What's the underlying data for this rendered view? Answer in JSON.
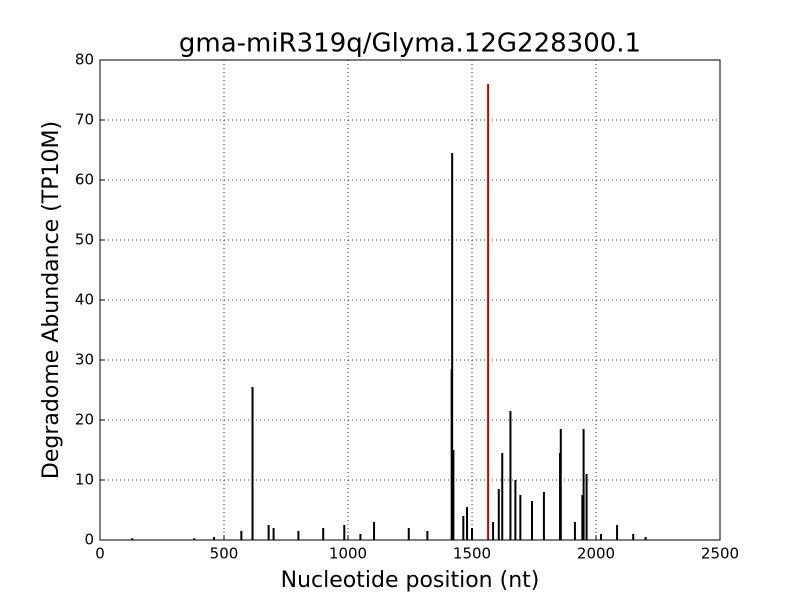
{
  "chart_data": {
    "type": "stem",
    "title": "gma-miR319q/Glyma.12G228300.1",
    "x_label": "Nucleotide position (nt)",
    "y_label": "Degradome Abundance (TP10M)",
    "xlim": [
      0,
      2500
    ],
    "ylim": [
      0,
      80
    ],
    "xticks": [
      0,
      500,
      1000,
      1500,
      2000,
      2500
    ],
    "yticks": [
      0,
      10,
      20,
      30,
      40,
      50,
      60,
      70,
      80
    ],
    "grid": true,
    "series": [
      {
        "color": "#000000",
        "x": [
          130,
          380,
          460,
          570,
          615,
          680,
          700,
          800,
          900,
          985,
          1050,
          1105,
          1245,
          1320,
          1418,
          1420,
          1425,
          1465,
          1480,
          1500,
          1585,
          1608,
          1622,
          1655,
          1675,
          1695,
          1742,
          1790,
          1855,
          1858,
          1915,
          1945,
          1950,
          1962,
          2020,
          2085,
          2150,
          2200
        ],
        "values": [
          0.3,
          0.3,
          0.5,
          1.5,
          25.5,
          2.5,
          2,
          1.5,
          2,
          2.5,
          1,
          3,
          2,
          1.5,
          28.5,
          64.5,
          15,
          4,
          5.5,
          2,
          3,
          8.5,
          14.5,
          21.5,
          10,
          7.5,
          6.5,
          8,
          14.5,
          18.5,
          3,
          7.5,
          18.5,
          11,
          1,
          2.5,
          1,
          0.5
        ]
      },
      {
        "color": "#cc0000",
        "x": [
          1565
        ],
        "values": [
          76
        ]
      }
    ]
  }
}
